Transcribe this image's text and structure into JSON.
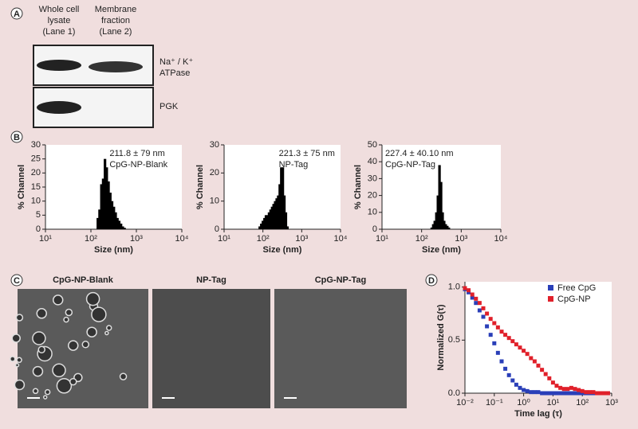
{
  "panel_labels": [
    "A",
    "B",
    "C",
    "D"
  ],
  "blot": {
    "lanes": [
      [
        "Whole cell",
        "lysate",
        "(Lane 1)"
      ],
      [
        "Membrane",
        "fraction",
        "(Lane 2)"
      ]
    ],
    "bands": [
      [
        "Na⁺ / K⁺",
        "ATPase"
      ],
      [
        "PGK"
      ]
    ]
  },
  "micrographs": {
    "titles": [
      "CpG-NP-Blank",
      "NP-Tag",
      "CpG-NP-Tag"
    ]
  },
  "chart_data": [
    {
      "type": "histogram",
      "annotation": [
        "211.8 ± 79 nm",
        "CpG-NP-Blank"
      ],
      "xlabel": "Size (nm)",
      "ylabel": "% Channel",
      "x": [
        142,
        155,
        170,
        186,
        204,
        223,
        244,
        267,
        292,
        320,
        350,
        383,
        419,
        459,
        502,
        550
      ],
      "values": [
        4,
        7,
        16,
        18,
        25,
        22,
        17,
        13,
        10,
        8,
        6,
        4,
        3,
        2,
        1,
        0.5
      ],
      "color": "#000000",
      "xlog": true,
      "xlim": [
        10,
        10000
      ],
      "xticks": [
        {
          "value": 10,
          "label": "10¹"
        },
        {
          "value": 100,
          "label": "10²"
        },
        {
          "value": 1000,
          "label": "10³"
        },
        {
          "value": 10000,
          "label": "10⁴"
        }
      ],
      "ylim": [
        0,
        30
      ],
      "yticks": [
        0,
        5,
        10,
        15,
        20,
        25,
        30
      ]
    },
    {
      "type": "histogram",
      "annotation": [
        "221.3 ± 75 nm",
        "NP-Tag"
      ],
      "xlabel": "Size (nm)",
      "ylabel": "% Channel",
      "x": [
        83,
        91,
        100,
        110,
        120,
        131,
        144,
        158,
        173,
        189,
        207,
        227,
        248,
        272,
        298,
        326,
        357,
        391,
        428
      ],
      "values": [
        1,
        2,
        3,
        4,
        5,
        5,
        6,
        7,
        8,
        9,
        10,
        11,
        12,
        16,
        22,
        22,
        12,
        6,
        1
      ],
      "color": "#000000",
      "xlog": true,
      "xlim": [
        10,
        10000
      ],
      "xticks": [
        {
          "value": 10,
          "label": "10¹"
        },
        {
          "value": 100,
          "label": "10²"
        },
        {
          "value": 1000,
          "label": "10³"
        },
        {
          "value": 10000,
          "label": "10⁴"
        }
      ],
      "ylim": [
        0,
        30
      ],
      "yticks": [
        0,
        10,
        20,
        30
      ]
    },
    {
      "type": "histogram",
      "annotation": [
        "227.4 ± 40.10 nm",
        "CpG-NP-Tag"
      ],
      "xlabel": "Size (nm)",
      "ylabel": "% Channel",
      "x": [
        180,
        197,
        215,
        236,
        258,
        283,
        310,
        339,
        371,
        406,
        445,
        487
      ],
      "values": [
        1,
        3,
        5,
        10,
        20,
        38,
        28,
        10,
        5,
        3,
        2,
        1
      ],
      "color": "#000000",
      "xlog": true,
      "xlim": [
        10,
        10000
      ],
      "xticks": [
        {
          "value": 10,
          "label": "10¹"
        },
        {
          "value": 100,
          "label": "10²"
        },
        {
          "value": 1000,
          "label": "10³"
        },
        {
          "value": 10000,
          "label": "10⁴"
        }
      ],
      "ylim": [
        0,
        50
      ],
      "yticks": [
        0,
        10,
        20,
        30,
        40,
        50
      ]
    },
    {
      "type": "scatter",
      "xlabel": "Time lag (τ)",
      "ylabel": "Normalized G(τ)",
      "legend": "top-right",
      "x": [
        0.01,
        0.0133,
        0.0178,
        0.0237,
        0.0316,
        0.0422,
        0.0562,
        0.075,
        0.1,
        0.133,
        0.178,
        0.237,
        0.316,
        0.422,
        0.562,
        0.75,
        1,
        1.33,
        1.78,
        2.37,
        3.16,
        4.22,
        5.62,
        7.5,
        10,
        13.3,
        17.8,
        23.7,
        31.6,
        42.2,
        56.2,
        75,
        100,
        133,
        178,
        237,
        316,
        422,
        562,
        750
      ],
      "series": [
        {
          "name": "Free CpG",
          "color": "#2a3fb8",
          "values": [
            0.98,
            0.95,
            0.9,
            0.85,
            0.78,
            0.72,
            0.63,
            0.55,
            0.47,
            0.38,
            0.3,
            0.23,
            0.17,
            0.12,
            0.08,
            0.05,
            0.03,
            0.02,
            0.01,
            0.01,
            0.01,
            0,
            0,
            0,
            0,
            0,
            0,
            0,
            0,
            0,
            0,
            0,
            0,
            0,
            0,
            0,
            0,
            0,
            0,
            0
          ]
        },
        {
          "name": "CpG-NP",
          "color": "#e0202a",
          "values": [
            0.99,
            0.97,
            0.93,
            0.89,
            0.85,
            0.8,
            0.75,
            0.7,
            0.66,
            0.62,
            0.58,
            0.55,
            0.52,
            0.49,
            0.46,
            0.43,
            0.4,
            0.37,
            0.33,
            0.3,
            0.26,
            0.22,
            0.18,
            0.14,
            0.1,
            0.07,
            0.05,
            0.04,
            0.04,
            0.05,
            0.04,
            0.03,
            0.02,
            0.01,
            0.01,
            0.01,
            0,
            0,
            0,
            0
          ]
        }
      ],
      "xlog": true,
      "xlim": [
        0.01,
        1000
      ],
      "xticks": [
        {
          "value": 0.01,
          "label": "10⁻²"
        },
        {
          "value": 0.1,
          "label": "10⁻¹"
        },
        {
          "value": 1,
          "label": "10⁰"
        },
        {
          "value": 10,
          "label": "10¹"
        },
        {
          "value": 100,
          "label": "10²"
        },
        {
          "value": 1000,
          "label": "10³"
        }
      ],
      "ylim": [
        0,
        1.05
      ],
      "yticks": [
        {
          "value": 0,
          "label": "0.0"
        },
        {
          "value": 0.5,
          "label": "0.5"
        },
        {
          "value": 1,
          "label": "1.0"
        }
      ]
    }
  ]
}
